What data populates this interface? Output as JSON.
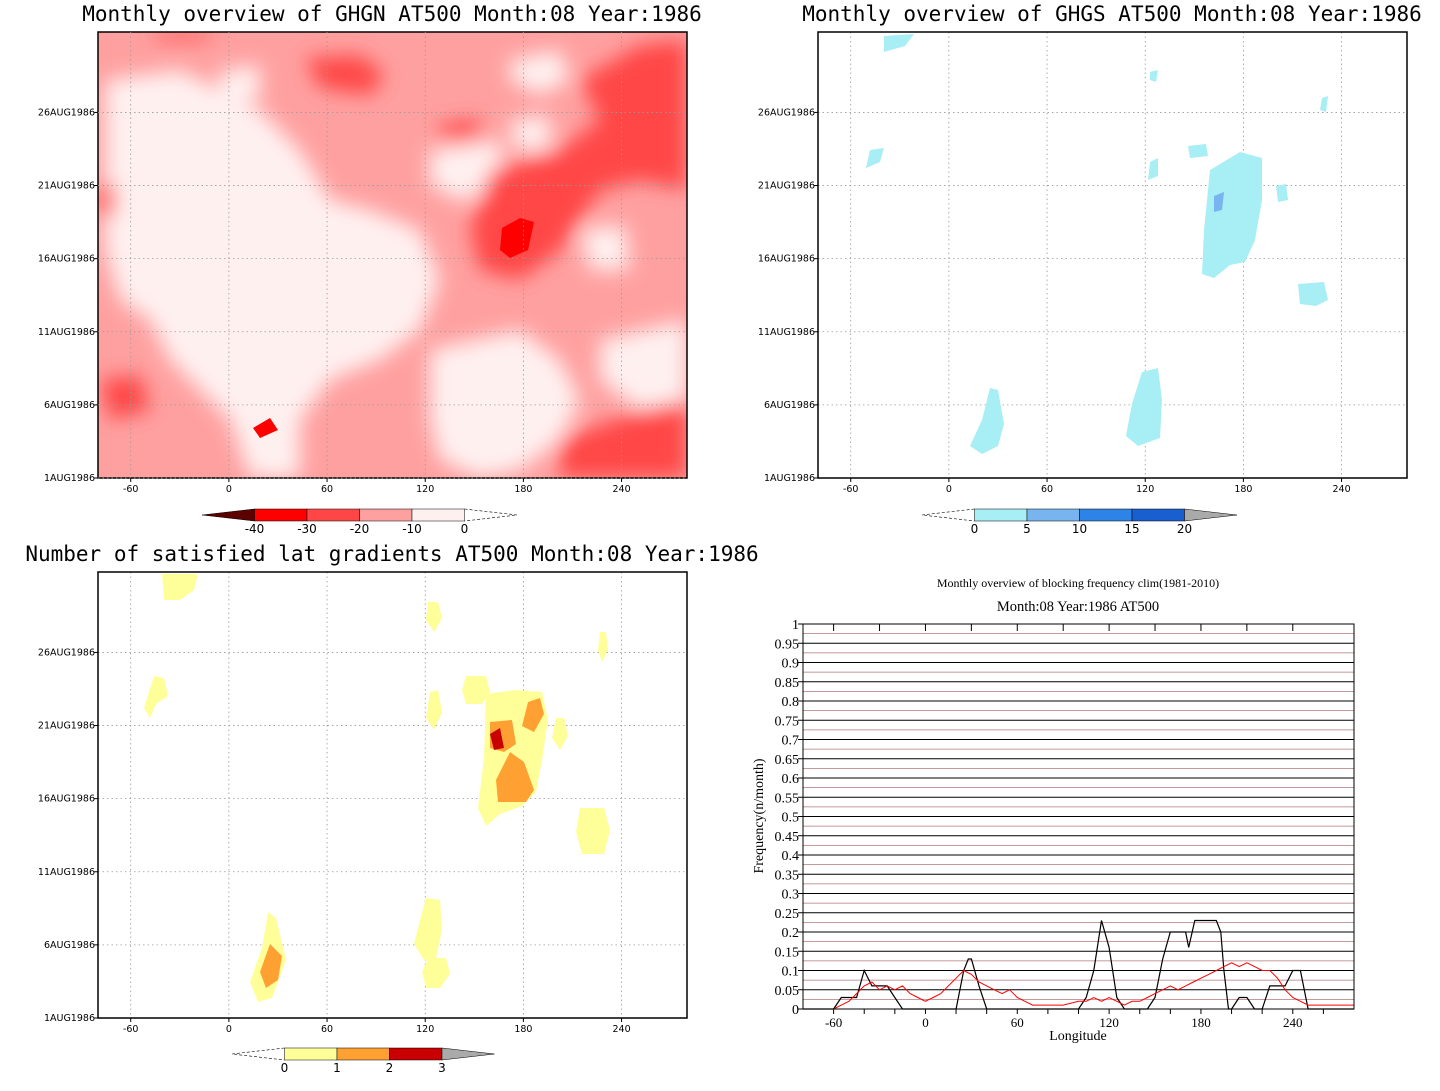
{
  "palette": {
    "red": [
      "#5c0000",
      "#ff0000",
      "#ff4646",
      "#ffa0a0",
      "#fff0f0"
    ],
    "blue": [
      "#a8eef5",
      "#78b4f0",
      "#2e84e6",
      "#1a5fd0",
      "#aaaaaa"
    ],
    "yellow": [
      "#ffff99",
      "#ffa033",
      "#c80000",
      "#aaaaaa"
    ]
  },
  "chart_data": [
    {
      "type": "heatmap",
      "title": "Monthly overview of GHGN AT500 Month:08 Year:1986",
      "xlabel": "",
      "ylabel": "",
      "x_ticks": [
        "-60",
        "0",
        "60",
        "120",
        "180",
        "240"
      ],
      "y_ticks": [
        "1AUG1986",
        "6AUG1986",
        "11AUG1986",
        "16AUG1986",
        "21AUG1986",
        "26AUG1986"
      ],
      "colorbar": {
        "labels": [
          "-40",
          "-30",
          "-20",
          "-10",
          "0"
        ],
        "levels": [
          -40,
          -30,
          -20,
          -10,
          0
        ]
      }
    },
    {
      "type": "heatmap",
      "title": "Monthly overview of GHGS AT500 Month:08 Year:1986",
      "xlabel": "",
      "ylabel": "",
      "x_ticks": [
        "-60",
        "0",
        "60",
        "120",
        "180",
        "240"
      ],
      "y_ticks": [
        "1AUG1986",
        "6AUG1986",
        "11AUG1986",
        "16AUG1986",
        "21AUG1986",
        "26AUG1986"
      ],
      "colorbar": {
        "labels": [
          "0",
          "5",
          "10",
          "15",
          "20"
        ],
        "levels": [
          0,
          5,
          10,
          15,
          20
        ]
      }
    },
    {
      "type": "heatmap",
      "title": "Number of satisfied lat gradients AT500 Month:08 Year:1986",
      "xlabel": "",
      "ylabel": "",
      "x_ticks": [
        "-60",
        "0",
        "60",
        "120",
        "180",
        "240"
      ],
      "y_ticks": [
        "1AUG1986",
        "6AUG1986",
        "11AUG1986",
        "16AUG1986",
        "21AUG1986",
        "26AUG1986"
      ],
      "colorbar": {
        "labels": [
          "0",
          "1",
          "2",
          "3"
        ],
        "levels": [
          0,
          1,
          2,
          3
        ]
      }
    },
    {
      "type": "line",
      "title": "Monthly overview of blocking frequency clim(1981-2010)",
      "subtitle": "Month:08 Year:1986  AT500",
      "xlabel": "Longitude",
      "ylabel": "Frequency(n/month)",
      "xlim": [
        -80,
        280
      ],
      "ylim": [
        0,
        1
      ],
      "x_ticks": [
        "-60",
        "0",
        "60",
        "120",
        "180",
        "240"
      ],
      "y_ticks": [
        "0",
        "0.05",
        "0.1",
        "0.15",
        "0.2",
        "0.25",
        "0.3",
        "0.35",
        "0.4",
        "0.45",
        "0.5",
        "0.55",
        "0.6",
        "0.65",
        "0.7",
        "0.75",
        "0.8",
        "0.85",
        "0.9",
        "0.95",
        "1"
      ],
      "series": [
        {
          "color": "#000000",
          "x": [
            -80,
            -60,
            -55,
            -45,
            -40,
            -35,
            -25,
            -20,
            -15,
            -10,
            -5,
            0,
            5,
            10,
            15,
            20,
            25,
            28,
            30,
            35,
            40,
            45,
            55,
            65,
            75,
            85,
            95,
            100,
            105,
            110,
            115,
            120,
            125,
            130,
            140,
            145,
            150,
            155,
            160,
            163,
            165,
            170,
            172,
            176,
            180,
            185,
            190,
            193,
            195,
            198,
            200,
            205,
            210,
            215,
            220,
            225,
            230,
            235,
            240,
            245,
            250,
            255,
            260,
            270,
            280
          ],
          "y": [
            0,
            0,
            0.03,
            0.03,
            0.1,
            0.06,
            0.06,
            0.03,
            0,
            0,
            0,
            0,
            0,
            0,
            0,
            0,
            0.1,
            0.13,
            0.13,
            0.06,
            0,
            0,
            0,
            0,
            0,
            0,
            0,
            0,
            0.03,
            0.1,
            0.23,
            0.16,
            0.03,
            0,
            0,
            0,
            0.03,
            0.13,
            0.2,
            0.2,
            0.2,
            0.2,
            0.16,
            0.23,
            0.23,
            0.23,
            0.23,
            0.2,
            0.1,
            0,
            0,
            0.03,
            0.03,
            0,
            0,
            0.06,
            0.06,
            0.06,
            0.1,
            0.1,
            0,
            0,
            0,
            0,
            0
          ]
        },
        {
          "color": "#ff0000",
          "x": [
            -80,
            -70,
            -60,
            -55,
            -50,
            -45,
            -40,
            -35,
            -30,
            -25,
            -20,
            -15,
            -10,
            -5,
            0,
            5,
            10,
            15,
            20,
            25,
            30,
            35,
            40,
            45,
            50,
            55,
            60,
            65,
            70,
            75,
            80,
            90,
            100,
            105,
            110,
            115,
            120,
            125,
            130,
            135,
            140,
            145,
            150,
            155,
            160,
            165,
            170,
            175,
            180,
            185,
            190,
            195,
            200,
            205,
            210,
            215,
            220,
            225,
            230,
            235,
            240,
            245,
            250,
            260,
            270,
            280
          ],
          "y": [
            0,
            0,
            0,
            0.01,
            0.02,
            0.04,
            0.06,
            0.07,
            0.05,
            0.06,
            0.05,
            0.06,
            0.04,
            0.03,
            0.02,
            0.03,
            0.04,
            0.06,
            0.08,
            0.1,
            0.09,
            0.07,
            0.06,
            0.05,
            0.04,
            0.05,
            0.03,
            0.02,
            0.01,
            0.01,
            0.01,
            0.01,
            0.02,
            0.02,
            0.03,
            0.02,
            0.03,
            0.02,
            0.01,
            0.02,
            0.02,
            0.03,
            0.04,
            0.05,
            0.06,
            0.05,
            0.06,
            0.07,
            0.08,
            0.09,
            0.1,
            0.11,
            0.12,
            0.11,
            0.12,
            0.11,
            0.1,
            0.1,
            0.08,
            0.05,
            0.03,
            0.02,
            0.01,
            0.01,
            0.01,
            0.01
          ]
        }
      ]
    }
  ]
}
